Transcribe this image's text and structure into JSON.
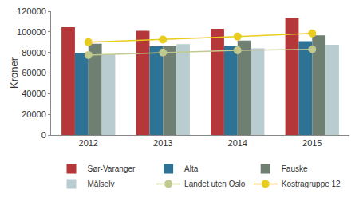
{
  "chart_data": {
    "type": "bar",
    "y_label": "Kroner",
    "categories": [
      "2012",
      "2013",
      "2014",
      "2015"
    ],
    "series": [
      {
        "name": "Sør-Varanger",
        "type": "bar",
        "color": "#b5373a",
        "values": [
          104500,
          101000,
          103000,
          113500
        ]
      },
      {
        "name": "Alta",
        "type": "bar",
        "color": "#2e7396",
        "values": [
          79500,
          86000,
          86500,
          91000
        ]
      },
      {
        "name": "Fauske",
        "type": "bar",
        "color": "#6f7f71",
        "values": [
          88500,
          86500,
          91500,
          96500
        ]
      },
      {
        "name": "Målselv",
        "type": "bar",
        "color": "#b9cccf",
        "values": [
          78000,
          88000,
          84000,
          87500
        ]
      },
      {
        "name": "Landet uten Oslo",
        "type": "line",
        "marker": "circle",
        "color": "#c2c98e",
        "values": [
          77500,
          80000,
          82000,
          83000
        ]
      },
      {
        "name": "Kostragruppe 12",
        "type": "line",
        "marker": "circle",
        "color": "#e8cc1e",
        "values": [
          90000,
          92500,
          95500,
          98500
        ]
      }
    ],
    "ylim": [
      0,
      120000
    ],
    "yticks": [
      0,
      20000,
      40000,
      60000,
      80000,
      100000,
      120000
    ],
    "grid": false,
    "legend": "bottom"
  }
}
